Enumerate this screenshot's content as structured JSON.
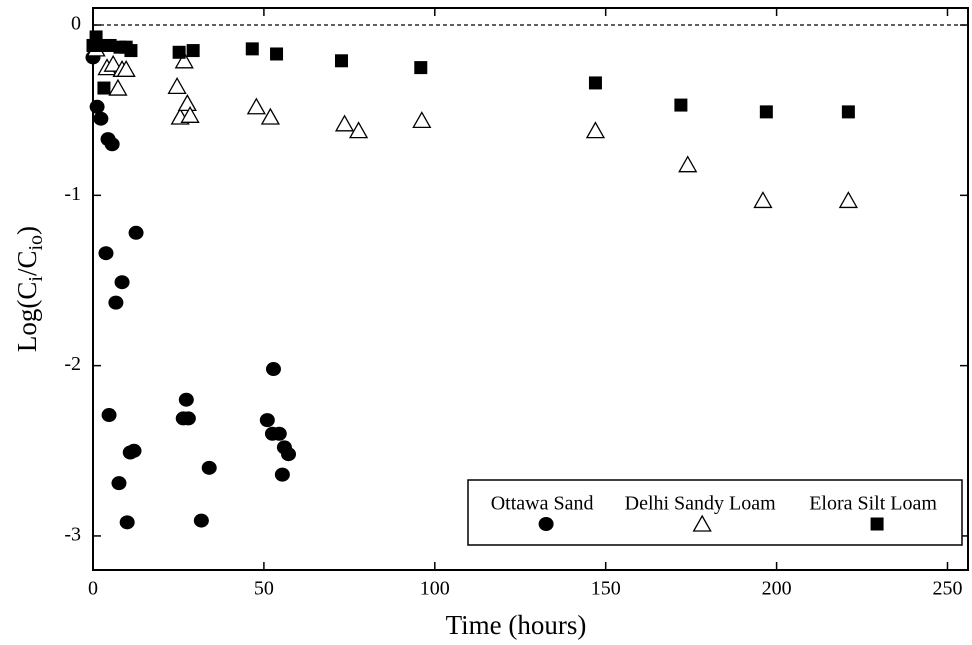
{
  "chart_data": {
    "type": "scatter",
    "x_label": "Time (hours)",
    "y_label": {
      "main": "Log(C",
      "sub1": "i",
      "mid": "/C",
      "sub2": "io",
      "end": ")"
    },
    "xlim": [
      0,
      256
    ],
    "ylim": [
      -3.2,
      0.1
    ],
    "xticks": [
      0,
      50,
      100,
      150,
      200,
      250
    ],
    "yticks": [
      0,
      -1,
      -2,
      -3
    ],
    "reference_line": 0,
    "legend": "lower right",
    "series": [
      {
        "name": "Ottawa Sand",
        "marker": "circle",
        "color": "#000000",
        "x": [
          0,
          1.2,
          2.3,
          4.4,
          5.6,
          3.8,
          6.7,
          8.5,
          12.6,
          4.7,
          7.6,
          10,
          10.9,
          12,
          27.3,
          26.4,
          27.9,
          31.7,
          34,
          52.8,
          51,
          52.5,
          54.5,
          56,
          57.2,
          55.4
        ],
        "values": [
          -0.19,
          -0.48,
          -0.55,
          -0.67,
          -0.7,
          -1.34,
          -1.63,
          -1.51,
          -1.22,
          -2.29,
          -2.69,
          -2.92,
          -2.51,
          -2.5,
          -2.2,
          -2.31,
          -2.31,
          -2.91,
          -2.6,
          -2.02,
          -2.32,
          -2.4,
          -2.4,
          -2.48,
          -2.52,
          -2.64
        ]
      },
      {
        "name": "Delhi Sandy Loam",
        "marker": "triangle",
        "color": "#000000",
        "x": [
          0.9,
          4.1,
          5.9,
          7.3,
          8.5,
          9.7,
          24.6,
          25.5,
          26.7,
          27.6,
          28.4,
          47.8,
          51.9,
          73.6,
          77.7,
          96.2,
          147,
          174,
          196,
          221
        ],
        "values": [
          -0.14,
          -0.25,
          -0.23,
          -0.37,
          -0.26,
          -0.26,
          -0.36,
          -0.54,
          -0.21,
          -0.46,
          -0.53,
          -0.48,
          -0.54,
          -0.58,
          -0.62,
          -0.56,
          -0.62,
          -0.82,
          -1.03,
          -1.03
        ]
      },
      {
        "name": "Elora Silt Loam",
        "marker": "square",
        "color": "#000000",
        "x": [
          0.9,
          0,
          1.5,
          3.2,
          5,
          7.9,
          9.7,
          11.1,
          25.2,
          29.3,
          46.6,
          53.7,
          72.7,
          95.9,
          147,
          172,
          197,
          221
        ],
        "values": [
          -0.07,
          -0.12,
          -0.12,
          -0.37,
          -0.12,
          -0.13,
          -0.13,
          -0.15,
          -0.16,
          -0.15,
          -0.14,
          -0.17,
          -0.21,
          -0.25,
          -0.34,
          -0.47,
          -0.51,
          -0.51
        ]
      }
    ]
  }
}
